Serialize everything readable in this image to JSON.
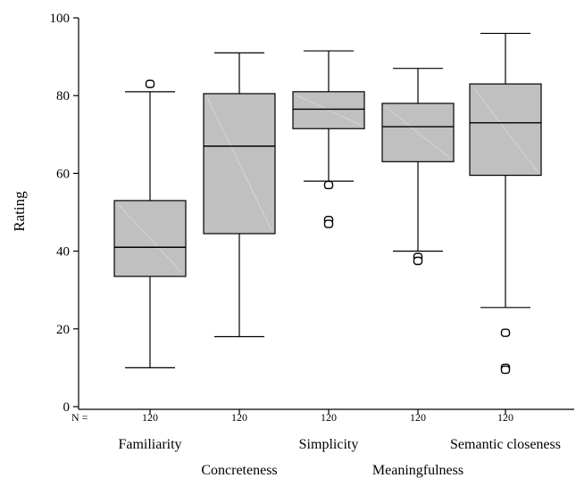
{
  "chart_data": {
    "type": "boxplot",
    "ylabel": "Rating",
    "xlabel": "",
    "ylim": [
      0,
      100
    ],
    "yticks": [
      0,
      20,
      40,
      60,
      80,
      100
    ],
    "n_prefix": "N =",
    "grid": false,
    "categories": [
      "Familiarity",
      "Concreteness",
      "Simplicity",
      "Meaningfulness",
      "Semantic closeness"
    ],
    "n": [
      "120",
      "120",
      "120",
      "120",
      "120"
    ],
    "boxes": [
      {
        "whisker_low": 10,
        "q1": 33.5,
        "median": 41,
        "q3": 53,
        "whisker_high": 81,
        "outliers": [
          83
        ]
      },
      {
        "whisker_low": 18,
        "q1": 44.5,
        "median": 67,
        "q3": 80.5,
        "whisker_high": 91,
        "outliers": []
      },
      {
        "whisker_low": 58,
        "q1": 71.5,
        "median": 76.5,
        "q3": 81,
        "whisker_high": 91.5,
        "outliers": [
          57,
          48,
          47
        ]
      },
      {
        "whisker_low": 40,
        "q1": 63,
        "median": 72,
        "q3": 78,
        "whisker_high": 87,
        "outliers": [
          38.5,
          37.5
        ]
      },
      {
        "whisker_low": 25.5,
        "q1": 59.5,
        "median": 73,
        "q3": 83,
        "whisker_high": 96,
        "outliers": [
          19,
          10,
          9.5
        ]
      }
    ],
    "colors": {
      "box_fill": "#c0c0c0",
      "stroke": "#000000"
    }
  }
}
